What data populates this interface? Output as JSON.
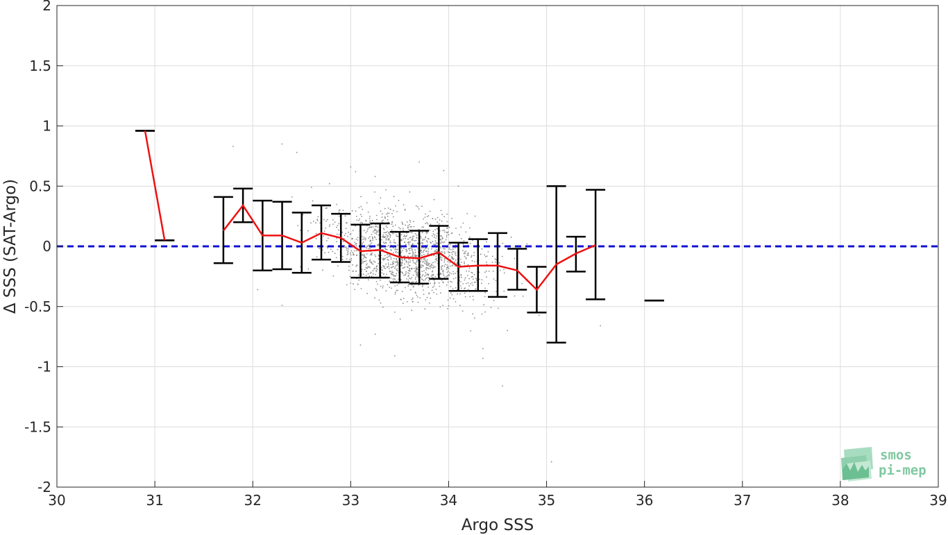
{
  "chart_data": {
    "type": "scatter",
    "title": "",
    "xlabel": "Argo SSS",
    "ylabel": "Δ SSS (SAT-Argo)",
    "xlim": [
      30,
      39
    ],
    "ylim": [
      -2,
      2
    ],
    "x_ticks": [
      30,
      31,
      32,
      33,
      34,
      35,
      36,
      37,
      38,
      39
    ],
    "x_tick_labels": [
      "30",
      "31",
      "32",
      "33",
      "34",
      "35",
      "36",
      "37",
      "38",
      "39"
    ],
    "y_ticks": [
      2,
      1.5,
      1,
      0.5,
      0,
      -0.5,
      -1,
      -1.5,
      -2
    ],
    "y_tick_labels": [
      "2",
      "1.5",
      "1",
      "0.5",
      "0",
      "-0.5",
      "-1",
      "-1.5",
      "-2"
    ],
    "grid": true,
    "reference_line": {
      "y": 0,
      "color": "#1010d0",
      "style": "dashed"
    },
    "mean_line": {
      "color": "#ee1111",
      "x": [
        30.9,
        31.1,
        31.7,
        31.9,
        32.1,
        32.3,
        32.5,
        32.7,
        32.9,
        33.1,
        33.3,
        33.5,
        33.7,
        33.9,
        34.1,
        34.3,
        34.5,
        34.7,
        34.9,
        35.1,
        35.3,
        35.5
      ],
      "y": [
        0.96,
        0.05,
        0.13,
        0.34,
        0.09,
        0.09,
        0.03,
        0.11,
        0.07,
        -0.04,
        -0.03,
        -0.09,
        -0.1,
        -0.05,
        -0.17,
        -0.16,
        -0.16,
        -0.2,
        -0.36,
        -0.15,
        -0.06,
        0.01
      ]
    },
    "error_bars": {
      "color": "#000000",
      "x": [
        30.9,
        31.1,
        31.7,
        31.9,
        32.1,
        32.3,
        32.5,
        32.7,
        32.9,
        33.1,
        33.3,
        33.5,
        33.7,
        33.9,
        34.1,
        34.3,
        34.5,
        34.7,
        34.9,
        35.1,
        35.3,
        35.5,
        36.1
      ],
      "low": [
        0.96,
        0.05,
        -0.14,
        0.2,
        -0.2,
        -0.19,
        -0.22,
        -0.11,
        -0.13,
        -0.26,
        -0.26,
        -0.3,
        -0.31,
        -0.27,
        -0.37,
        -0.37,
        -0.42,
        -0.36,
        -0.55,
        -0.8,
        -0.21,
        -0.44,
        -0.45
      ],
      "high": [
        0.96,
        0.05,
        0.41,
        0.48,
        0.38,
        0.37,
        0.28,
        0.34,
        0.27,
        0.18,
        0.19,
        0.12,
        0.13,
        0.17,
        0.03,
        0.06,
        0.11,
        -0.02,
        -0.17,
        0.5,
        0.08,
        0.47,
        -0.45
      ]
    },
    "scatter_points": {
      "color": "#8c8c8c",
      "outliers": [
        [
          31.8,
          0.83
        ],
        [
          32.3,
          0.85
        ],
        [
          32.45,
          0.78
        ],
        [
          33.0,
          0.66
        ],
        [
          33.05,
          0.62
        ],
        [
          33.25,
          0.58
        ],
        [
          33.7,
          0.7
        ],
        [
          33.95,
          0.63
        ],
        [
          34.1,
          0.5
        ],
        [
          32.3,
          -0.49
        ],
        [
          33.1,
          -0.82
        ],
        [
          33.25,
          -0.73
        ],
        [
          33.45,
          -0.91
        ],
        [
          34.35,
          -0.93
        ],
        [
          34.35,
          -0.85
        ],
        [
          34.55,
          -1.16
        ],
        [
          34.6,
          -0.7
        ],
        [
          35.05,
          -1.79
        ],
        [
          35.55,
          -0.66
        ],
        [
          35.5,
          0.21
        ],
        [
          32.05,
          -0.36
        ],
        [
          32.4,
          0.41
        ],
        [
          32.6,
          0.49
        ],
        [
          34.8,
          0.02
        ],
        [
          34.75,
          -0.31
        ]
      ]
    }
  },
  "logo": {
    "line1": "smos",
    "line2": "pi-mep"
  }
}
